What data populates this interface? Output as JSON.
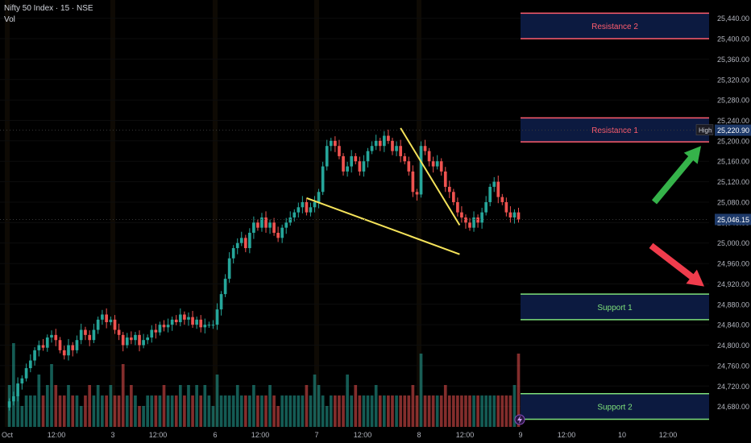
{
  "header": {
    "title": "Nifty 50 Index · 15 · NSE",
    "vol_label": "Vol"
  },
  "colors": {
    "up": "#26a69a",
    "down": "#ef5350",
    "trendline": "#f5e35a",
    "resistance": "#ff5d6e",
    "support": "#7ee07a",
    "zone_fill": "#0c1a40",
    "arrow_up": "#35b34a",
    "arrow_down": "#f03c4c",
    "price_tag": "#1e3a6a"
  },
  "chart_data": {
    "type": "candlestick",
    "ylim": [
      24640,
      25460
    ],
    "y_ticks": [
      "25,440.00",
      "25,400.00",
      "25,360.00",
      "25,320.00",
      "25,280.00",
      "25,240.00",
      "25,200.00",
      "25,160.00",
      "25,120.00",
      "25,080.00",
      "25,040.00",
      "25,000.00",
      "24,960.00",
      "24,920.00",
      "24,880.00",
      "24,840.00",
      "24,800.00",
      "24,760.00",
      "24,720.00",
      "24,680.00"
    ],
    "x_ticks": [
      "Oct",
      "12:00",
      "3",
      "12:00",
      "6",
      "12:00",
      "7",
      "12:00",
      "8",
      "12:00",
      "9",
      "12:00",
      "10",
      "12:00"
    ],
    "candles_per_day": 25,
    "days": [
      "Oct 1",
      "Oct 3",
      "Oct 6",
      "Oct 7",
      "Oct 8"
    ],
    "closes": [
      24690,
      24700,
      24725,
      24735,
      24755,
      24770,
      24790,
      24800,
      24795,
      24815,
      24820,
      24810,
      24790,
      24780,
      24800,
      24790,
      24810,
      24830,
      24820,
      24810,
      24830,
      24850,
      24860,
      24845,
      24850,
      24830,
      24820,
      24800,
      24815,
      24810,
      24820,
      24800,
      24810,
      24815,
      24830,
      24825,
      24840,
      24835,
      24840,
      24850,
      24845,
      24860,
      24850,
      24855,
      24840,
      24850,
      24835,
      24840,
      24840,
      24840,
      24870,
      24900,
      24930,
      24970,
      24990,
      25000,
      25010,
      24990,
      25020,
      25040,
      25030,
      25050,
      25030,
      25040,
      25020,
      25010,
      25030,
      25040,
      25050,
      25060,
      25070,
      25080,
      25060,
      25070,
      25080,
      25100,
      25150,
      25190,
      25200,
      25190,
      25170,
      25140,
      25150,
      25170,
      25160,
      25140,
      25160,
      25180,
      25190,
      25200,
      25190,
      25210,
      25200,
      25180,
      25190,
      25170,
      25160,
      25140,
      25100,
      25095,
      25190,
      25180,
      25160,
      25150,
      25160,
      25140,
      25110,
      25100,
      25080,
      25060,
      25050,
      25040,
      25030,
      25050,
      25040,
      25060,
      25080,
      25110,
      25120,
      25090,
      25080,
      25060,
      25050,
      25060,
      25046
    ],
    "volumes": [
      4,
      8,
      3,
      2,
      3,
      3,
      3,
      5,
      3,
      4,
      6,
      4,
      3,
      3,
      4,
      3,
      3,
      2,
      3,
      4,
      3,
      4,
      3,
      3,
      4,
      3,
      3,
      6,
      3,
      4,
      3,
      2,
      2,
      3,
      3,
      3,
      3,
      4,
      3,
      3,
      3,
      4,
      3,
      4,
      3,
      4,
      3,
      4,
      3,
      2,
      5,
      3,
      3,
      3,
      3,
      4,
      3,
      3,
      3,
      4,
      3,
      3,
      3,
      4,
      3,
      2,
      3,
      3,
      3,
      3,
      3,
      3,
      4,
      3,
      5,
      4,
      3,
      2,
      3,
      3,
      3,
      3,
      5,
      3,
      4,
      3,
      3,
      3,
      3,
      4,
      3,
      3,
      3,
      3,
      3,
      3,
      3,
      3,
      4,
      3,
      7,
      3,
      3,
      3,
      3,
      3,
      4,
      3,
      3,
      3,
      3,
      3,
      3,
      3,
      3,
      3,
      3,
      3,
      3,
      3,
      3,
      3,
      3,
      4,
      7
    ],
    "current_price": 25046.15,
    "current_price_label": "25,046.15",
    "high_label": "High",
    "high_price": 25220.9,
    "high_price_label": "25,220.90",
    "zones": [
      {
        "label": "Resistance 2",
        "top": 25450,
        "bottom": 25400,
        "kind": "resistance"
      },
      {
        "label": "Resistance 1",
        "top": 25245,
        "bottom": 25198,
        "kind": "resistance"
      },
      {
        "label": "Support 1",
        "top": 24900,
        "bottom": 24850,
        "kind": "support"
      },
      {
        "label": "Support 2",
        "top": 24705,
        "bottom": 24655,
        "kind": "support"
      }
    ],
    "trendlines": [
      {
        "name": "upper",
        "from": {
          "candle": 95,
          "price": 25225
        },
        "to": {
          "x_after_end": 4.4,
          "price": 25035
        }
      },
      {
        "name": "lower",
        "from": {
          "candle": 72,
          "price": 25088
        },
        "to": {
          "x_after_end": 4.4,
          "price": 24978
        }
      }
    ],
    "arrows": [
      {
        "direction": "up",
        "from_price": 25080,
        "to_price": 25190
      },
      {
        "direction": "down",
        "from_price": 24995,
        "to_price": 24915
      }
    ]
  }
}
